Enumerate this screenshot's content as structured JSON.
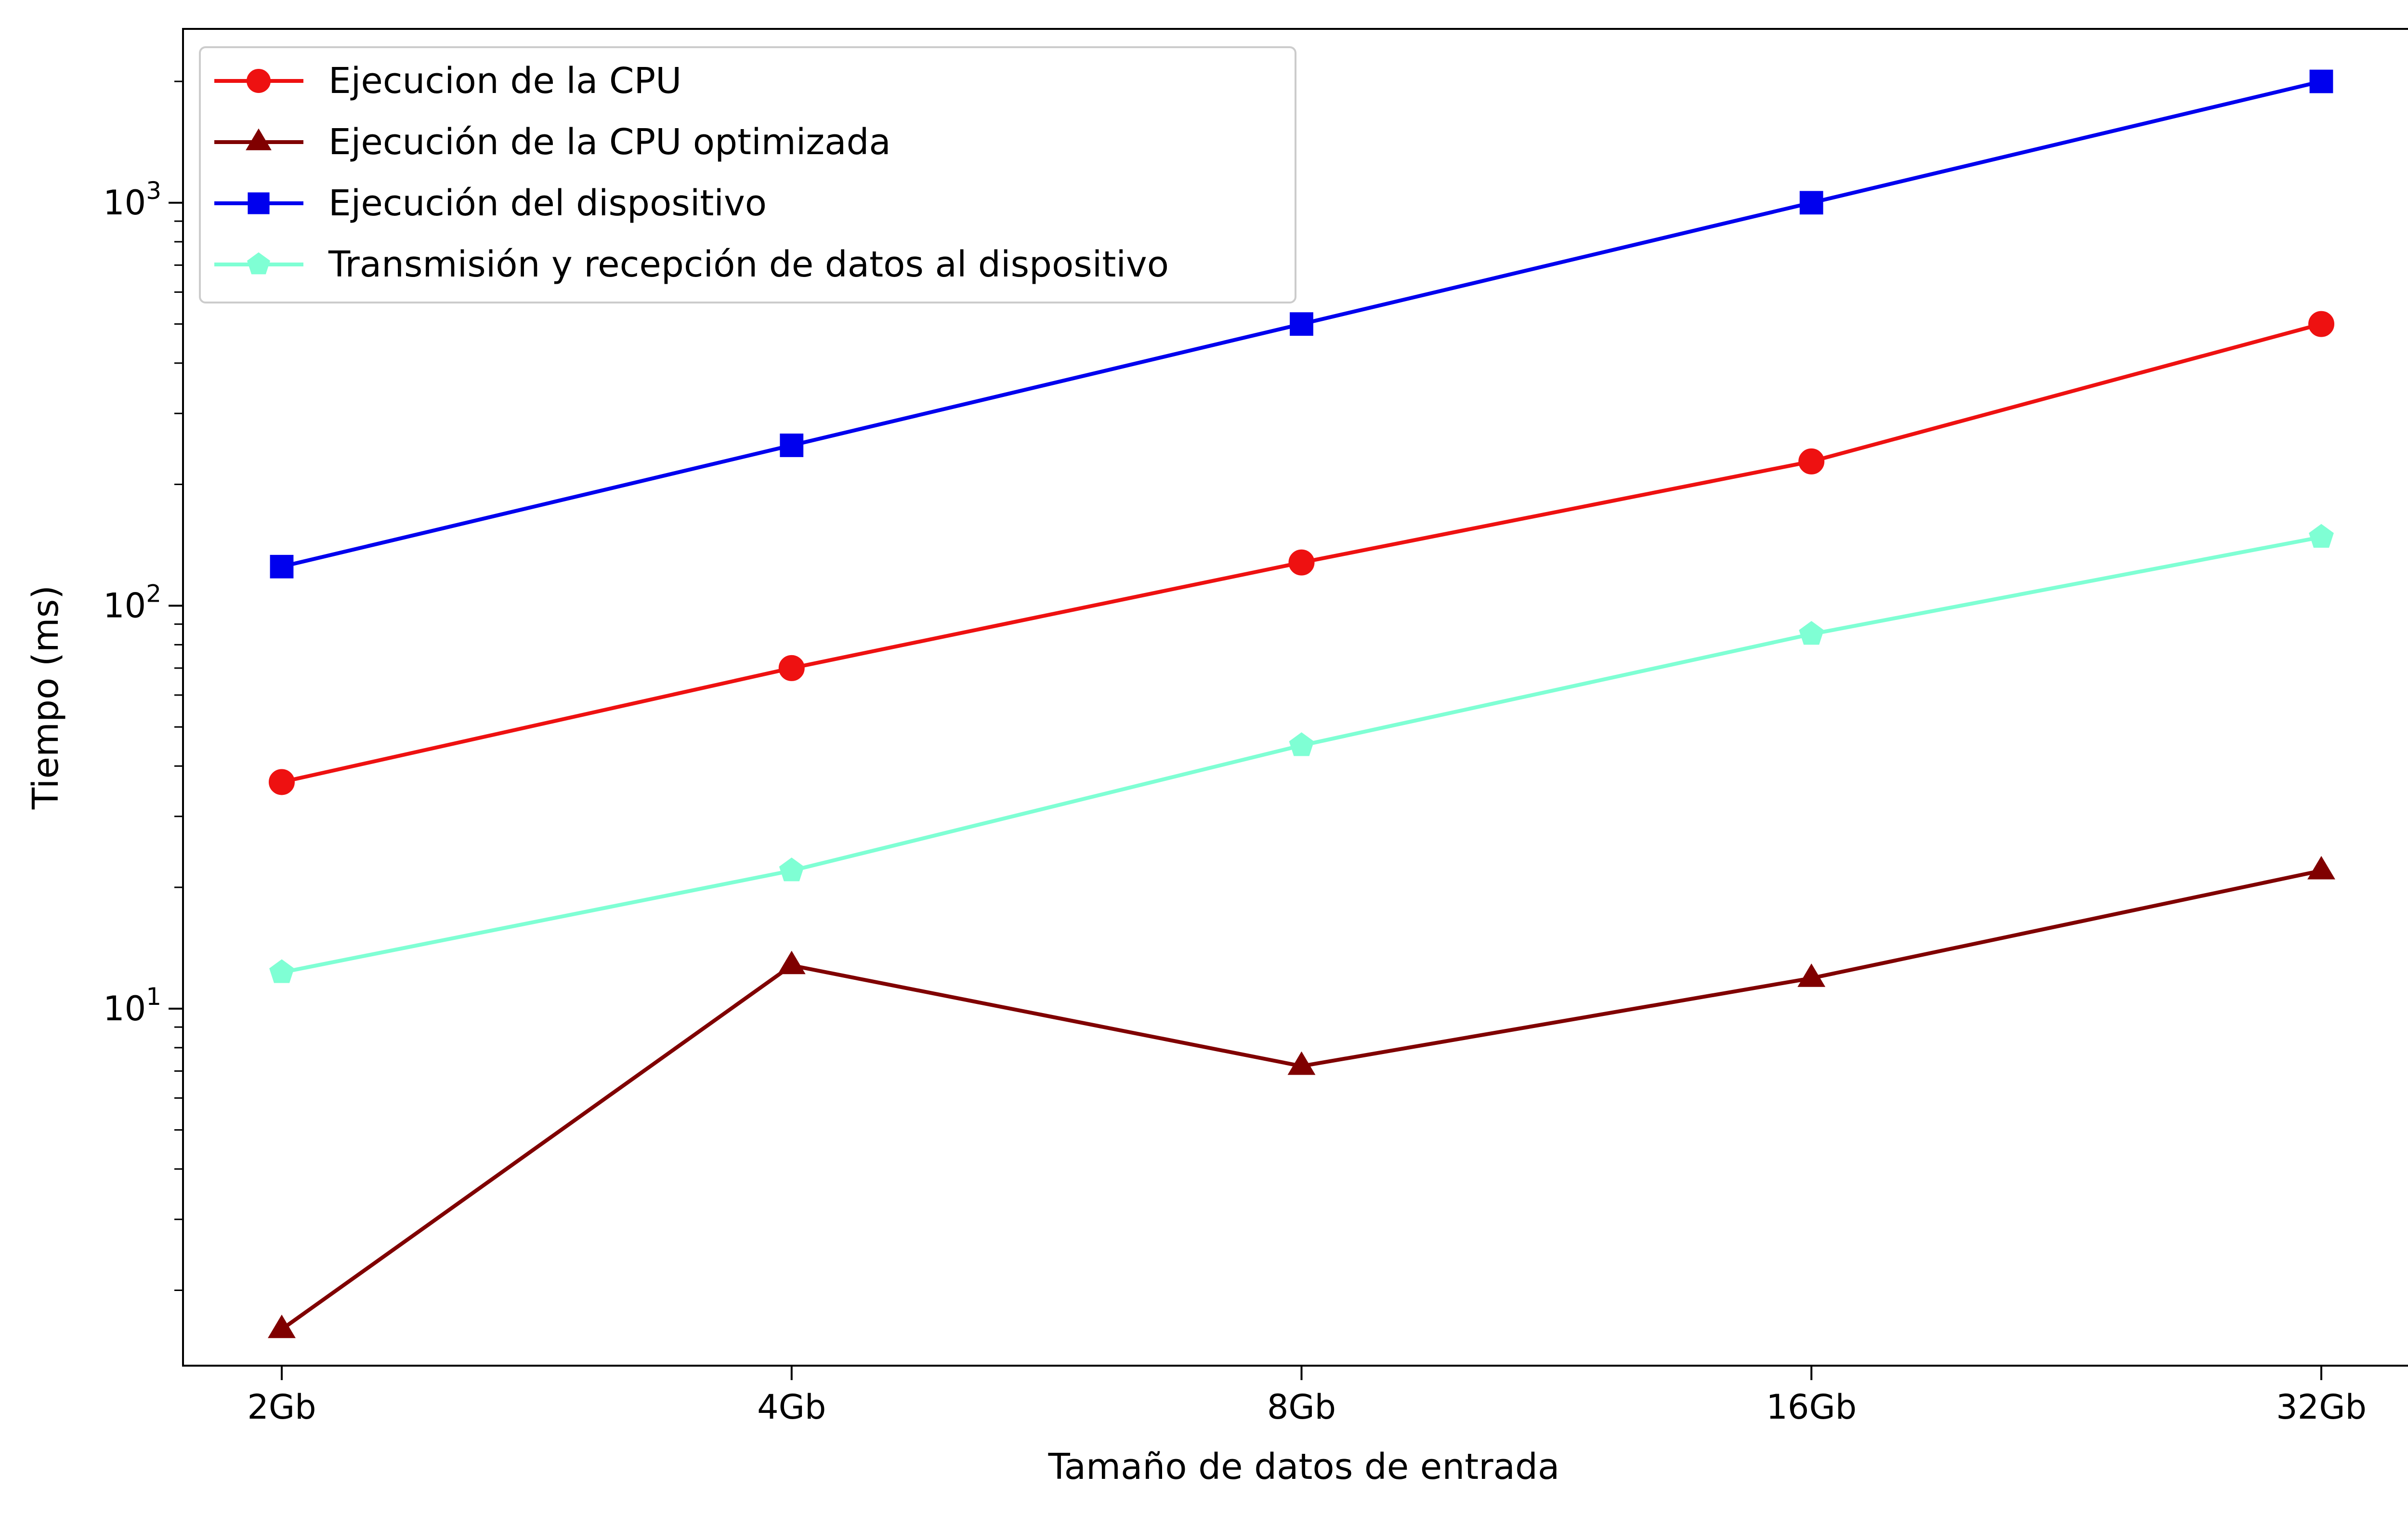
{
  "chart_data": {
    "type": "line",
    "title": "",
    "xlabel": "Tamaño de datos de entrada",
    "ylabel": "Tiempo (ms)",
    "yscale": "log",
    "ylim": [
      1.3,
      2700
    ],
    "grid": false,
    "legend_position": "top-left",
    "categories": [
      "2Gb",
      "4Gb",
      "8Gb",
      "16Gb",
      "32Gb"
    ],
    "y_ticks": [
      {
        "value": 10,
        "base": "10",
        "exp": "1"
      },
      {
        "value": 100,
        "base": "10",
        "exp": "2"
      },
      {
        "value": 1000,
        "base": "10",
        "exp": "3"
      }
    ],
    "series": [
      {
        "name": "Ejecucion de la CPU",
        "values": [
          36.5,
          70,
          128,
          228,
          500
        ],
        "color": "#ee1111",
        "marker": "circle"
      },
      {
        "name": "Ejecución de la CPU optimizada",
        "values": [
          1.6,
          12.8,
          7.2,
          11.9,
          22
        ],
        "color": "#800000",
        "marker": "triangle"
      },
      {
        "name": "Ejecución del dispositivo",
        "values": [
          125,
          250,
          500,
          1000,
          2000
        ],
        "color": "#0000ee",
        "marker": "square"
      },
      {
        "name": "Transmisión y recepción de datos al dispositivo",
        "values": [
          12.3,
          22,
          45,
          85,
          148
        ],
        "color": "#7fffd4",
        "marker": "pentagon"
      }
    ]
  }
}
